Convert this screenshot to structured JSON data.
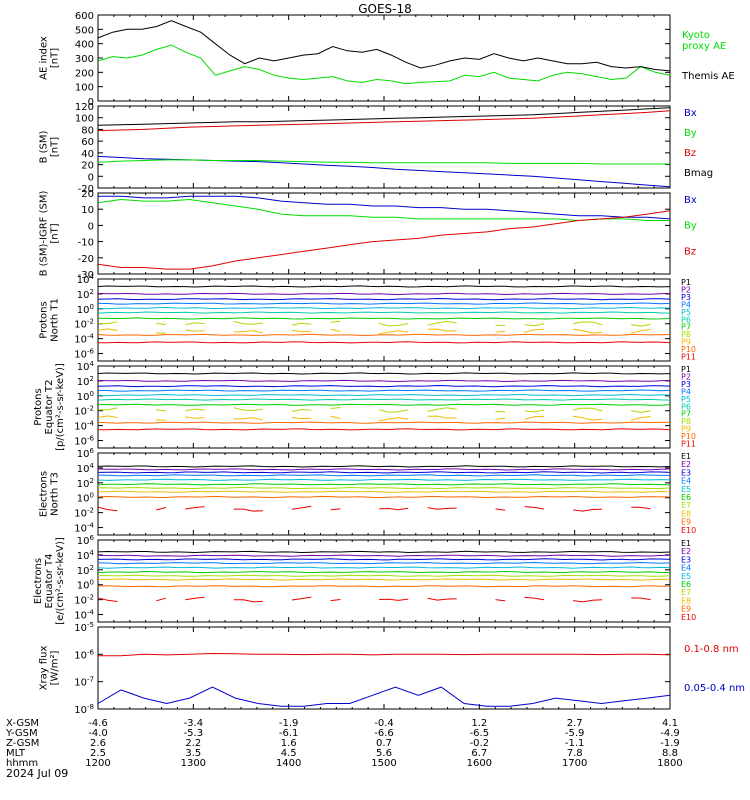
{
  "title": "GOES-18",
  "colors": {
    "black": "#000000",
    "red": "#dd0000",
    "green": "#00dd00",
    "blue": "#0000cc",
    "p_series": [
      "#000000",
      "#7a00aa",
      "#0000dd",
      "#0077ff",
      "#00bbdd",
      "#00ccaa",
      "#00cc00",
      "#aadd00",
      "#eebb00",
      "#ff6600",
      "#ee0000"
    ]
  },
  "x_axis": {
    "rows": [
      {
        "name": "X-GSM",
        "values": [
          "-4.6",
          "-3.4",
          "-1.9",
          "-0.4",
          "1.2",
          "2.7",
          "4.1"
        ]
      },
      {
        "name": "Y-GSM",
        "values": [
          "-4.0",
          "-5.3",
          "-6.1",
          "-6.6",
          "-6.5",
          "-5.9",
          "-4.9"
        ]
      },
      {
        "name": "Z-GSM",
        "values": [
          "2.6",
          "2.2",
          "1.6",
          "0.7",
          "-0.2",
          "-1.1",
          "-1.9"
        ]
      },
      {
        "name": "MLT",
        "values": [
          "2.5",
          "3.5",
          "4.5",
          "5.6",
          "6.7",
          "7.8",
          "8.8"
        ]
      },
      {
        "name": "hhmm",
        "values": [
          "1200",
          "1300",
          "1400",
          "1500",
          "1600",
          "1700",
          "1800"
        ]
      }
    ],
    "date": "2024 Jul 09"
  },
  "chart_data": [
    {
      "type": "line",
      "id": "ae",
      "ylabel": [
        "AE index",
        "[nT]"
      ],
      "ylim": [
        0,
        600
      ],
      "yticks": [
        "0",
        "100",
        "200",
        "300",
        "400",
        "500",
        "600"
      ],
      "series": [
        {
          "name": "Kyoto proxy AE",
          "color": "#00dd00",
          "legend_lines": [
            "Kyoto",
            "proxy AE"
          ],
          "values": [
            280,
            310,
            300,
            320,
            360,
            390,
            340,
            300,
            180,
            210,
            240,
            220,
            180,
            160,
            150,
            160,
            170,
            140,
            130,
            150,
            140,
            120,
            130,
            135,
            140,
            180,
            170,
            200,
            160,
            150,
            140,
            180,
            200,
            190,
            170,
            150,
            160,
            240,
            200,
            180
          ]
        },
        {
          "name": "Themis AE",
          "color": "#000000",
          "legend_lines": [
            "Themis AE"
          ],
          "values": [
            440,
            480,
            500,
            500,
            520,
            560,
            520,
            480,
            400,
            320,
            260,
            300,
            280,
            300,
            320,
            330,
            380,
            350,
            340,
            360,
            320,
            270,
            230,
            250,
            280,
            300,
            290,
            330,
            300,
            280,
            300,
            280,
            260,
            260,
            270,
            240,
            230,
            240,
            220,
            210
          ]
        }
      ]
    },
    {
      "type": "line",
      "id": "bsm",
      "ylabel": [
        "B (SM)",
        "[nT]"
      ],
      "ylim": [
        -20,
        120
      ],
      "yticks": [
        "-20",
        "0",
        "20",
        "40",
        "60",
        "80",
        "100",
        "120"
      ],
      "series": [
        {
          "name": "Bx",
          "color": "#0000cc",
          "values": [
            34,
            32,
            30,
            29,
            28,
            27,
            26,
            25,
            23,
            21,
            19,
            17,
            15,
            12,
            10,
            8,
            6,
            4,
            2,
            0,
            -3,
            -6,
            -9,
            -12,
            -15,
            -18
          ]
        },
        {
          "name": "By",
          "color": "#00dd00",
          "values": [
            24,
            26,
            27,
            28,
            28,
            27,
            27,
            27,
            26,
            25,
            24,
            24,
            23,
            23,
            23,
            23,
            23,
            23,
            22,
            22,
            22,
            22,
            21,
            21,
            21,
            21
          ]
        },
        {
          "name": "Bz",
          "color": "#dd0000",
          "values": [
            78,
            79,
            80,
            82,
            84,
            85,
            86,
            87,
            88,
            89,
            90,
            91,
            92,
            93,
            94,
            95,
            96,
            97,
            98,
            99,
            101,
            103,
            105,
            107,
            109,
            112
          ]
        },
        {
          "name": "Bmag",
          "color": "#000000",
          "values": [
            87,
            88,
            89,
            90,
            91,
            92,
            93,
            93,
            94,
            95,
            96,
            97,
            98,
            99,
            100,
            101,
            102,
            103,
            104,
            105,
            107,
            109,
            111,
            113,
            115,
            117
          ]
        }
      ]
    },
    {
      "type": "line",
      "id": "bigrf",
      "ylabel": [
        "B (SM)-IGRF (SM)",
        "[nT]"
      ],
      "ylim": [
        -30,
        20
      ],
      "yticks": [
        "-30",
        "-20",
        "-10",
        "0",
        "10",
        "20"
      ],
      "series": [
        {
          "name": "Bx",
          "color": "#0000cc",
          "values": [
            18,
            18,
            17,
            17,
            18,
            18,
            18,
            17,
            15,
            14,
            13,
            13,
            12,
            12,
            11,
            11,
            10,
            10,
            9,
            8,
            7,
            6,
            6,
            5,
            5,
            4
          ]
        },
        {
          "name": "By",
          "color": "#00dd00",
          "values": [
            14,
            16,
            15,
            15,
            16,
            14,
            12,
            10,
            7,
            6,
            6,
            6,
            5,
            5,
            4,
            4,
            4,
            4,
            4,
            4,
            4,
            3,
            4,
            4,
            3,
            3
          ]
        },
        {
          "name": "Bz",
          "color": "#dd0000",
          "values": [
            -24,
            -26,
            -26,
            -27,
            -27,
            -25,
            -22,
            -20,
            -18,
            -16,
            -14,
            -12,
            -10,
            -9,
            -8,
            -6,
            -5,
            -4,
            -2,
            -1,
            1,
            3,
            4,
            5,
            7,
            9
          ]
        }
      ]
    },
    {
      "type": "line",
      "id": "pt1",
      "log": true,
      "ylabel": [
        "Protons",
        "North T1"
      ],
      "ylim": [
        -7,
        4
      ],
      "yticks": [
        "10-6",
        "10-4",
        "10-2",
        "100",
        "102",
        "104"
      ],
      "ytick_exps": [
        -6,
        -4,
        -2,
        0,
        2,
        4
      ],
      "legend": [
        "P1",
        "P2",
        "P3",
        "P4",
        "P5",
        "P6",
        "P7",
        "P8",
        "P9",
        "P10",
        "P11"
      ],
      "levels": [
        3.0,
        2.0,
        1.3,
        0.7,
        0.1,
        -0.5,
        -1.3,
        -2.0,
        -3.0,
        -3.5,
        -4.5
      ],
      "gappy": [
        7,
        8
      ]
    },
    {
      "type": "line",
      "id": "pt2",
      "log": true,
      "ylabel": [
        "Protons",
        "Equator T2",
        "[p/(cm²-s-sr-keV)]"
      ],
      "ylim": [
        -7,
        4
      ],
      "yticks": [
        "10-6",
        "10-4",
        "10-2",
        "100",
        "102",
        "104"
      ],
      "ytick_exps": [
        -6,
        -4,
        -2,
        0,
        2,
        4
      ],
      "legend": [
        "P1",
        "P2",
        "P3",
        "P4",
        "P5",
        "P6",
        "P7",
        "P8",
        "P9",
        "P10",
        "P11"
      ],
      "levels": [
        3.0,
        2.0,
        1.3,
        0.7,
        0.1,
        -0.5,
        -1.2,
        -1.9,
        -3.0,
        -3.6,
        -4.5
      ],
      "gappy": [
        7,
        8
      ]
    },
    {
      "type": "line",
      "id": "et3",
      "log": true,
      "ylabel": [
        "Electrons",
        "North T3"
      ],
      "ylim": [
        -5,
        6
      ],
      "yticks": [
        "10-4",
        "10-2",
        "100",
        "102",
        "104",
        "106"
      ],
      "ytick_exps": [
        -4,
        -2,
        0,
        2,
        4,
        6
      ],
      "legend": [
        "E1",
        "E2",
        "E3",
        "E4",
        "E5",
        "E6",
        "E7",
        "E8",
        "E9",
        "E10"
      ],
      "levels": [
        4.2,
        3.8,
        3.4,
        3.0,
        2.4,
        1.8,
        1.3,
        0.8,
        0.1,
        -1.5
      ],
      "gappy": [
        9
      ]
    },
    {
      "type": "line",
      "id": "et4",
      "log": true,
      "ylabel": [
        "Electrons",
        "Equator T4",
        "[e/(cm²-s-sr-keV)]"
      ],
      "ylim": [
        -5,
        6
      ],
      "yticks": [
        "10-4",
        "10-2",
        "100",
        "102",
        "104",
        "106"
      ],
      "ytick_exps": [
        -4,
        -2,
        0,
        2,
        4,
        6
      ],
      "legend": [
        "E1",
        "E2",
        "E3",
        "E4",
        "E5",
        "E6",
        "E7",
        "E8",
        "E9",
        "E10"
      ],
      "levels": [
        4.4,
        3.9,
        3.4,
        2.9,
        2.3,
        1.7,
        1.2,
        0.7,
        -0.2,
        -2.0
      ],
      "gappy": [
        9
      ]
    },
    {
      "type": "line",
      "id": "xray",
      "log": true,
      "ylabel": [
        "Xray flux",
        "[W/m²]"
      ],
      "ylim": [
        -8,
        -5
      ],
      "yticks": [
        "10-8",
        "10-7",
        "10-6",
        "10-5"
      ],
      "ytick_exps": [
        -8,
        -7,
        -6,
        -5
      ],
      "series": [
        {
          "name": "0.1-0.8 nm",
          "color": "#dd0000",
          "values": [
            -6.05,
            -6.05,
            -6.0,
            -6.02,
            -6.0,
            -5.97,
            -5.98,
            -6.0,
            -6.0,
            -6.01,
            -6.0,
            -6.0,
            -6.02,
            -6.0,
            -6.0,
            -6.0,
            -6.01,
            -6.0,
            -6.0,
            -6.0,
            -6.0,
            -6.0,
            -6.01,
            -6.0,
            -6.0,
            -6.02
          ]
        },
        {
          "name": "0.05-0.4 nm",
          "color": "#0000cc",
          "values": [
            -7.8,
            -7.3,
            -7.6,
            -7.8,
            -7.6,
            -7.2,
            -7.6,
            -7.8,
            -7.9,
            -7.9,
            -7.8,
            -7.8,
            -7.5,
            -7.2,
            -7.5,
            -7.2,
            -7.8,
            -7.9,
            -7.9,
            -7.8,
            -7.6,
            -7.7,
            -7.8,
            -7.7,
            -7.6,
            -7.5
          ]
        }
      ]
    }
  ]
}
